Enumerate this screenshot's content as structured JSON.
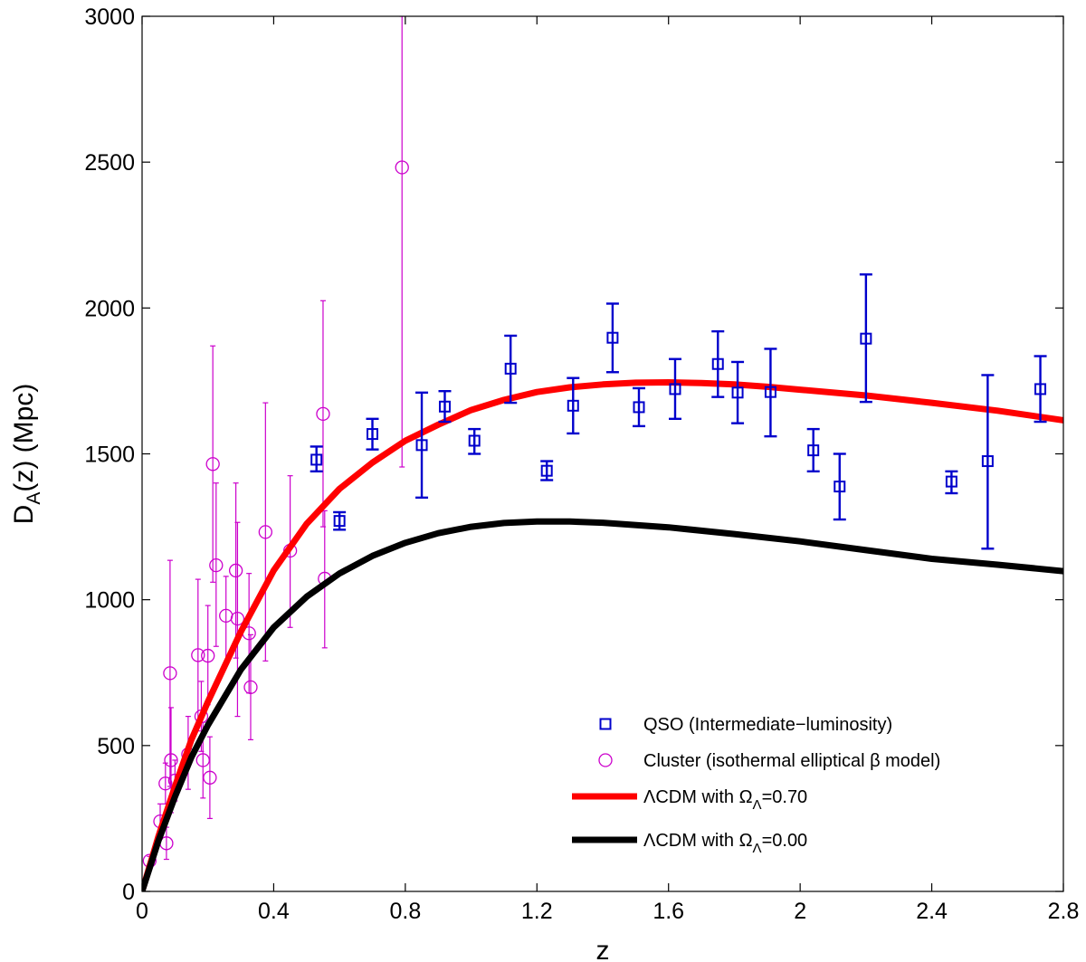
{
  "chart_data": {
    "type": "scatter",
    "title": "",
    "xlabel": "z",
    "ylabel": {
      "main": "D",
      "sub": "A",
      "rest": "(z)  (Mpc)"
    },
    "xlim": [
      0,
      2.8
    ],
    "ylim": [
      0,
      3000
    ],
    "xticks": [
      0,
      0.4,
      0.8,
      1.2,
      1.6,
      2,
      2.4,
      2.8
    ],
    "xtick_labels": [
      "0",
      "0.4",
      "0.8",
      "1.2",
      "1.6",
      "2",
      "2.4",
      "2.8"
    ],
    "yticks": [
      0,
      500,
      1000,
      1500,
      2000,
      2500,
      3000
    ],
    "ytick_labels": [
      "0",
      "500",
      "1000",
      "1500",
      "2000",
      "2500",
      "3000"
    ],
    "grid": false,
    "legend_position": "bottom-right",
    "series": [
      {
        "name": "QSO (Intermediate−luminosity)",
        "kind": "scatter",
        "marker": "square",
        "color": "#0000cc",
        "legend": {
          "text": "QSO (Intermediate−luminosity)"
        },
        "points": [
          {
            "x": 0.53,
            "y": 1480,
            "lo": 1440,
            "hi": 1525
          },
          {
            "x": 0.6,
            "y": 1270,
            "lo": 1240,
            "hi": 1300
          },
          {
            "x": 0.7,
            "y": 1568,
            "lo": 1515,
            "hi": 1620
          },
          {
            "x": 0.85,
            "y": 1530,
            "lo": 1350,
            "hi": 1710
          },
          {
            "x": 0.92,
            "y": 1662,
            "lo": 1610,
            "hi": 1715
          },
          {
            "x": 1.01,
            "y": 1545,
            "lo": 1500,
            "hi": 1585
          },
          {
            "x": 1.12,
            "y": 1792,
            "lo": 1675,
            "hi": 1905
          },
          {
            "x": 1.23,
            "y": 1442,
            "lo": 1410,
            "hi": 1475
          },
          {
            "x": 1.31,
            "y": 1665,
            "lo": 1570,
            "hi": 1760
          },
          {
            "x": 1.43,
            "y": 1898,
            "lo": 1780,
            "hi": 2015
          },
          {
            "x": 1.51,
            "y": 1660,
            "lo": 1595,
            "hi": 1725
          },
          {
            "x": 1.62,
            "y": 1722,
            "lo": 1620,
            "hi": 1825
          },
          {
            "x": 1.75,
            "y": 1808,
            "lo": 1695,
            "hi": 1920
          },
          {
            "x": 1.81,
            "y": 1710,
            "lo": 1605,
            "hi": 1815
          },
          {
            "x": 1.91,
            "y": 1712,
            "lo": 1560,
            "hi": 1860
          },
          {
            "x": 2.04,
            "y": 1512,
            "lo": 1440,
            "hi": 1585
          },
          {
            "x": 2.12,
            "y": 1388,
            "lo": 1275,
            "hi": 1500
          },
          {
            "x": 2.2,
            "y": 1895,
            "lo": 1678,
            "hi": 2115
          },
          {
            "x": 2.46,
            "y": 1405,
            "lo": 1365,
            "hi": 1440
          },
          {
            "x": 2.57,
            "y": 1475,
            "lo": 1175,
            "hi": 1770
          },
          {
            "x": 2.73,
            "y": 1722,
            "lo": 1610,
            "hi": 1835
          }
        ]
      },
      {
        "name": "Cluster (isothermal elliptical β model)",
        "kind": "scatter",
        "marker": "circle",
        "color": "#cc00cc",
        "legend": {
          "text": "Cluster (isothermal elliptical β model)"
        },
        "points": [
          {
            "x": 0.023,
            "y": 105,
            "lo": 90,
            "hi": 120
          },
          {
            "x": 0.055,
            "y": 240,
            "lo": 180,
            "hi": 300
          },
          {
            "x": 0.071,
            "y": 370,
            "lo": 300,
            "hi": 440
          },
          {
            "x": 0.074,
            "y": 165,
            "lo": 110,
            "hi": 220
          },
          {
            "x": 0.085,
            "y": 748,
            "lo": 360,
            "hi": 1135
          },
          {
            "x": 0.088,
            "y": 450,
            "lo": 270,
            "hi": 630
          },
          {
            "x": 0.1,
            "y": 380,
            "lo": 310,
            "hi": 450
          },
          {
            "x": 0.14,
            "y": 470,
            "lo": 350,
            "hi": 600
          },
          {
            "x": 0.17,
            "y": 810,
            "lo": 550,
            "hi": 1070
          },
          {
            "x": 0.18,
            "y": 600,
            "lo": 480,
            "hi": 720
          },
          {
            "x": 0.185,
            "y": 450,
            "lo": 320,
            "hi": 580
          },
          {
            "x": 0.2,
            "y": 808,
            "lo": 640,
            "hi": 980
          },
          {
            "x": 0.206,
            "y": 390,
            "lo": 250,
            "hi": 530
          },
          {
            "x": 0.215,
            "y": 1465,
            "lo": 1060,
            "hi": 1870
          },
          {
            "x": 0.225,
            "y": 1118,
            "lo": 840,
            "hi": 1400
          },
          {
            "x": 0.255,
            "y": 945,
            "lo": 780,
            "hi": 1080
          },
          {
            "x": 0.285,
            "y": 1100,
            "lo": 800,
            "hi": 1400
          },
          {
            "x": 0.29,
            "y": 935,
            "lo": 600,
            "hi": 1265
          },
          {
            "x": 0.325,
            "y": 885,
            "lo": 680,
            "hi": 1090
          },
          {
            "x": 0.33,
            "y": 700,
            "lo": 520,
            "hi": 880
          },
          {
            "x": 0.375,
            "y": 1232,
            "lo": 790,
            "hi": 1675
          },
          {
            "x": 0.45,
            "y": 1168,
            "lo": 905,
            "hi": 1425
          },
          {
            "x": 0.55,
            "y": 1637,
            "lo": 1250,
            "hi": 2025
          },
          {
            "x": 0.555,
            "y": 1072,
            "lo": 835,
            "hi": 1305
          },
          {
            "x": 0.79,
            "y": 2482,
            "lo": 1455,
            "hi": 3000
          }
        ]
      },
      {
        "name": "ΛCDM with ΩΛ=0.70",
        "kind": "line",
        "color": "#ff0000",
        "legend": {
          "text": "ΛCDM with Ω",
          "sub": "Λ",
          "tail": "=0.70"
        },
        "x": [
          0,
          0.05,
          0.1,
          0.15,
          0.2,
          0.3,
          0.4,
          0.5,
          0.6,
          0.7,
          0.8,
          0.9,
          1.0,
          1.1,
          1.2,
          1.3,
          1.4,
          1.5,
          1.6,
          1.7,
          1.8,
          1.9,
          2.0,
          2.2,
          2.4,
          2.6,
          2.8
        ],
        "y": [
          0,
          190,
          360,
          520,
          650,
          890,
          1100,
          1260,
          1380,
          1470,
          1545,
          1600,
          1650,
          1685,
          1712,
          1728,
          1738,
          1744,
          1745,
          1743,
          1738,
          1730,
          1720,
          1700,
          1675,
          1648,
          1615
        ]
      },
      {
        "name": "ΛCDM with ΩΛ=0.00",
        "kind": "line",
        "color": "#000000",
        "legend": {
          "text": "ΛCDM with Ω",
          "sub": "Λ",
          "tail": "=0.00"
        },
        "x": [
          0,
          0.05,
          0.1,
          0.15,
          0.2,
          0.3,
          0.4,
          0.5,
          0.6,
          0.7,
          0.8,
          0.9,
          1.0,
          1.1,
          1.2,
          1.3,
          1.4,
          1.6,
          1.8,
          2.0,
          2.2,
          2.4,
          2.6,
          2.8
        ],
        "y": [
          0,
          175,
          325,
          460,
          570,
          760,
          905,
          1010,
          1090,
          1150,
          1195,
          1228,
          1250,
          1263,
          1268,
          1268,
          1264,
          1248,
          1225,
          1200,
          1170,
          1140,
          1120,
          1098
        ]
      }
    ]
  }
}
